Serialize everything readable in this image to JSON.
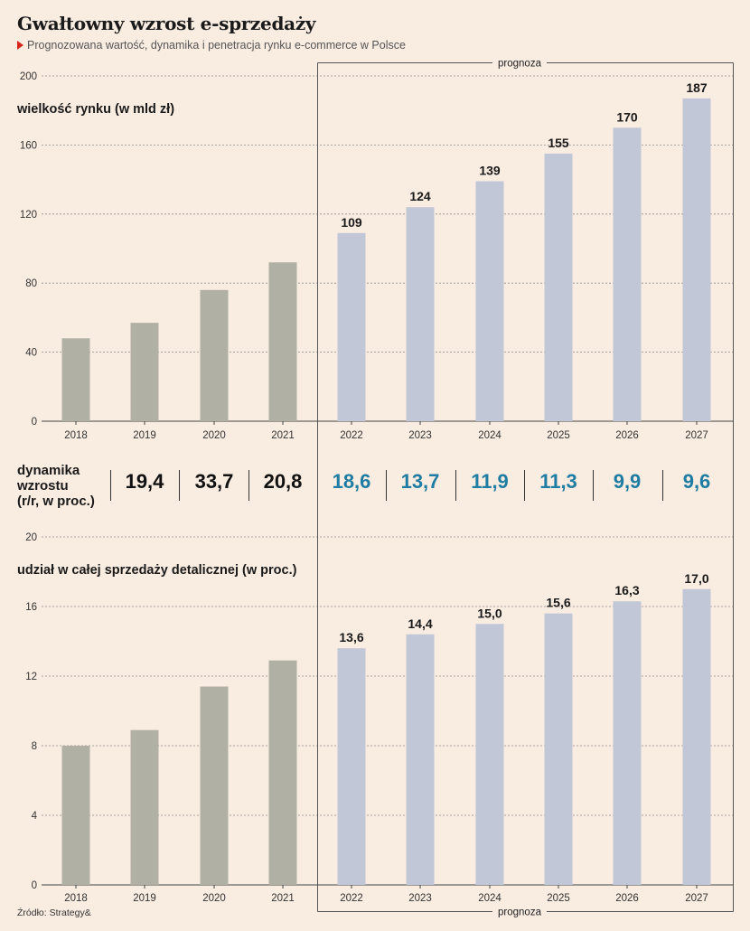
{
  "title": "Gwałtowny wzrost e-sprzedaży",
  "subtitle": "Prognozowana wartość, dynamika i penetracja rynku e-commerce w Polsce",
  "source": "Źródło: Strategy&",
  "forecast_label": "prognoza",
  "growth": {
    "label_lines": [
      "dynamika",
      "wzrostu",
      "(r/r, w proc.)"
    ],
    "values": [
      "19,4",
      "33,7",
      "20,8",
      "18,6",
      "13,7",
      "11,9",
      "11,3",
      "9,9",
      "9,6"
    ]
  },
  "colors": {
    "background": "#f9ece1",
    "actual_bar": "#b1b0a5",
    "forecast_bar": "#c2c7d8",
    "forecast_growth_text": "#1f7da3",
    "actual_growth_text": "#111111"
  },
  "chart_data": [
    {
      "type": "bar",
      "title": "wielkość rynku (w mld zł)",
      "categories": [
        "2018",
        "2019",
        "2020",
        "2021",
        "2022",
        "2023",
        "2024",
        "2025",
        "2026",
        "2027"
      ],
      "values": [
        48,
        57,
        76,
        92,
        109,
        124,
        139,
        155,
        170,
        187
      ],
      "data_labels": [
        "",
        "",
        "",
        "",
        "109",
        "124",
        "139",
        "155",
        "170",
        "187"
      ],
      "forecast_from": "2022",
      "ylim": [
        0,
        200
      ],
      "yticks": [
        "0",
        "40",
        "80",
        "120",
        "160",
        "200"
      ],
      "grid": true
    },
    {
      "type": "bar",
      "title": "udział w całej sprzedaży detalicznej (w proc.)",
      "categories": [
        "2018",
        "2019",
        "2020",
        "2021",
        "2022",
        "2023",
        "2024",
        "2025",
        "2026",
        "2027"
      ],
      "values": [
        8.0,
        8.9,
        11.4,
        12.9,
        13.6,
        14.4,
        15.0,
        15.6,
        16.3,
        17.0
      ],
      "data_labels": [
        "",
        "",
        "",
        "",
        "13,6",
        "14,4",
        "15,0",
        "15,6",
        "16,3",
        "17,0"
      ],
      "forecast_from": "2022",
      "ylim": [
        0,
        20
      ],
      "yticks": [
        "0",
        "4",
        "8",
        "12",
        "16",
        "20"
      ],
      "grid": true
    }
  ]
}
